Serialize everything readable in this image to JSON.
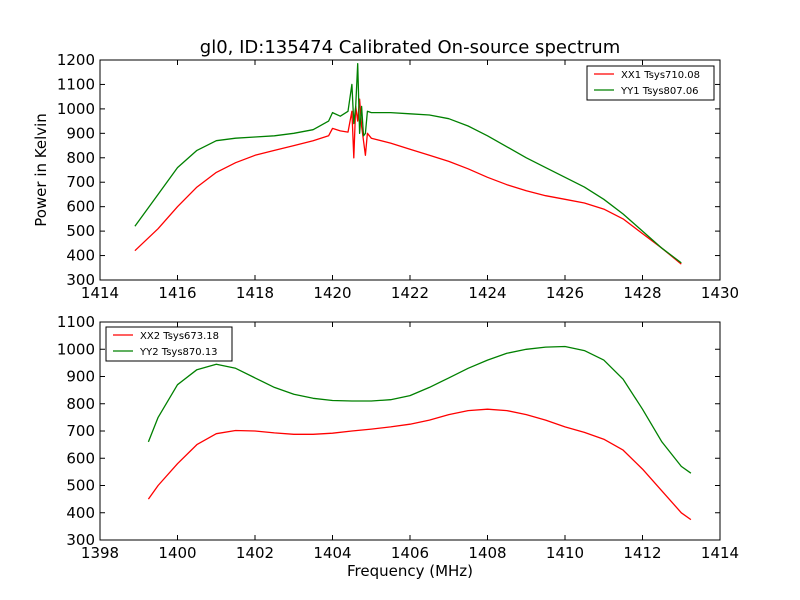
{
  "title": "gl0, ID:135474 Calibrated On-source spectrum",
  "chart_data": [
    {
      "type": "line",
      "title": "gl0, ID:135474 Calibrated On-source spectrum",
      "xlabel": "",
      "ylabel": "Power in Kelvin",
      "xlim": [
        1414,
        1430
      ],
      "ylim": [
        300,
        1200
      ],
      "xticks": [
        1414,
        1416,
        1418,
        1420,
        1422,
        1424,
        1426,
        1428,
        1430
      ],
      "yticks": [
        300,
        400,
        500,
        600,
        700,
        800,
        900,
        1000,
        1100,
        1200
      ],
      "grid": false,
      "legend_position": "top-right",
      "series": [
        {
          "name": "XX1 Tsys710.08",
          "color": "#ff0000",
          "x": [
            1414.9,
            1415.5,
            1416.0,
            1416.5,
            1417.0,
            1417.5,
            1418.0,
            1418.5,
            1419.0,
            1419.5,
            1419.9,
            1420.0,
            1420.2,
            1420.4,
            1420.5,
            1420.55,
            1420.6,
            1420.65,
            1420.7,
            1420.75,
            1420.8,
            1420.85,
            1420.9,
            1421.0,
            1421.5,
            1422.0,
            1422.5,
            1423.0,
            1423.5,
            1424.0,
            1424.5,
            1425.0,
            1425.5,
            1426.0,
            1426.5,
            1427.0,
            1427.5,
            1428.0,
            1428.5,
            1429.0
          ],
          "y": [
            420,
            510,
            600,
            680,
            740,
            780,
            810,
            830,
            850,
            870,
            890,
            920,
            910,
            905,
            990,
            800,
            1010,
            950,
            1040,
            930,
            870,
            810,
            900,
            880,
            860,
            835,
            810,
            785,
            755,
            720,
            690,
            665,
            645,
            630,
            615,
            590,
            550,
            490,
            430,
            365
          ]
        },
        {
          "name": "YY1 Tsys807.06",
          "color": "#008000",
          "x": [
            1414.9,
            1415.5,
            1416.0,
            1416.5,
            1417.0,
            1417.5,
            1418.0,
            1418.5,
            1419.0,
            1419.5,
            1419.9,
            1420.0,
            1420.2,
            1420.4,
            1420.5,
            1420.55,
            1420.6,
            1420.65,
            1420.7,
            1420.75,
            1420.8,
            1420.85,
            1420.9,
            1421.0,
            1421.5,
            1422.0,
            1422.5,
            1423.0,
            1423.5,
            1424.0,
            1424.5,
            1425.0,
            1425.5,
            1426.0,
            1426.5,
            1427.0,
            1427.5,
            1428.0,
            1428.5,
            1429.0
          ],
          "y": [
            520,
            650,
            760,
            830,
            870,
            880,
            885,
            890,
            900,
            915,
            950,
            985,
            970,
            990,
            1100,
            940,
            1010,
            1185,
            900,
            1010,
            890,
            900,
            990,
            985,
            985,
            980,
            975,
            960,
            930,
            890,
            845,
            800,
            760,
            720,
            680,
            630,
            570,
            500,
            430,
            370
          ]
        }
      ]
    },
    {
      "type": "line",
      "title": "",
      "xlabel": "Frequency (MHz)",
      "ylabel": "",
      "xlim": [
        1398,
        1414
      ],
      "ylim": [
        300,
        1100
      ],
      "xticks": [
        1398,
        1400,
        1402,
        1404,
        1406,
        1408,
        1410,
        1412,
        1414
      ],
      "yticks": [
        300,
        400,
        500,
        600,
        700,
        800,
        900,
        1000,
        1100
      ],
      "grid": false,
      "legend_position": "top-left",
      "series": [
        {
          "name": "XX2 Tsys673.18",
          "color": "#ff0000",
          "x": [
            1399.25,
            1399.5,
            1400.0,
            1400.5,
            1401.0,
            1401.5,
            1402.0,
            1402.5,
            1403.0,
            1403.5,
            1404.0,
            1404.5,
            1405.0,
            1405.5,
            1406.0,
            1406.5,
            1407.0,
            1407.5,
            1408.0,
            1408.5,
            1409.0,
            1409.5,
            1410.0,
            1410.5,
            1411.0,
            1411.5,
            1412.0,
            1412.5,
            1413.0,
            1413.25
          ],
          "y": [
            450,
            500,
            580,
            650,
            690,
            702,
            700,
            693,
            688,
            688,
            692,
            700,
            707,
            715,
            725,
            740,
            760,
            775,
            780,
            775,
            760,
            740,
            715,
            695,
            670,
            630,
            560,
            480,
            400,
            375
          ]
        },
        {
          "name": "YY2 Tsys870.13",
          "color": "#008000",
          "x": [
            1399.25,
            1399.5,
            1400.0,
            1400.5,
            1401.0,
            1401.5,
            1402.0,
            1402.5,
            1403.0,
            1403.5,
            1404.0,
            1404.5,
            1405.0,
            1405.5,
            1406.0,
            1406.5,
            1407.0,
            1407.5,
            1408.0,
            1408.5,
            1409.0,
            1409.5,
            1410.0,
            1410.5,
            1411.0,
            1411.5,
            1412.0,
            1412.5,
            1413.0,
            1413.25
          ],
          "y": [
            660,
            750,
            870,
            925,
            945,
            930,
            895,
            860,
            835,
            820,
            812,
            810,
            810,
            815,
            830,
            860,
            895,
            930,
            960,
            985,
            1000,
            1008,
            1010,
            995,
            960,
            890,
            780,
            660,
            570,
            545
          ]
        }
      ]
    }
  ]
}
